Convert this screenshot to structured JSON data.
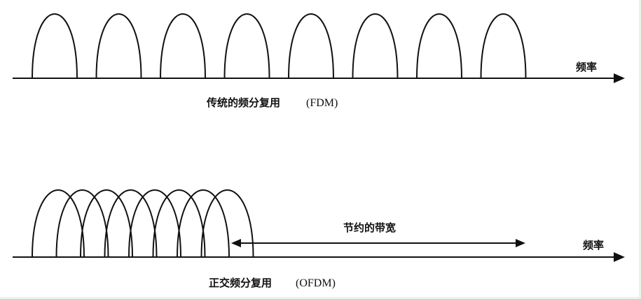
{
  "fdm": {
    "subcarrier_count": 8,
    "axis_label": "频率",
    "caption_cn": "传统的频分复用",
    "caption_en": "(FDM)"
  },
  "ofdm": {
    "subcarrier_count": 8,
    "axis_label": "频率",
    "caption_cn": "正交频分复用",
    "caption_en": "(OFDM)",
    "saving_label": "节约的带宽"
  },
  "colors": {
    "stroke": "#111111",
    "background": "#ffffff",
    "edge_tint": "#e8f4e8"
  }
}
